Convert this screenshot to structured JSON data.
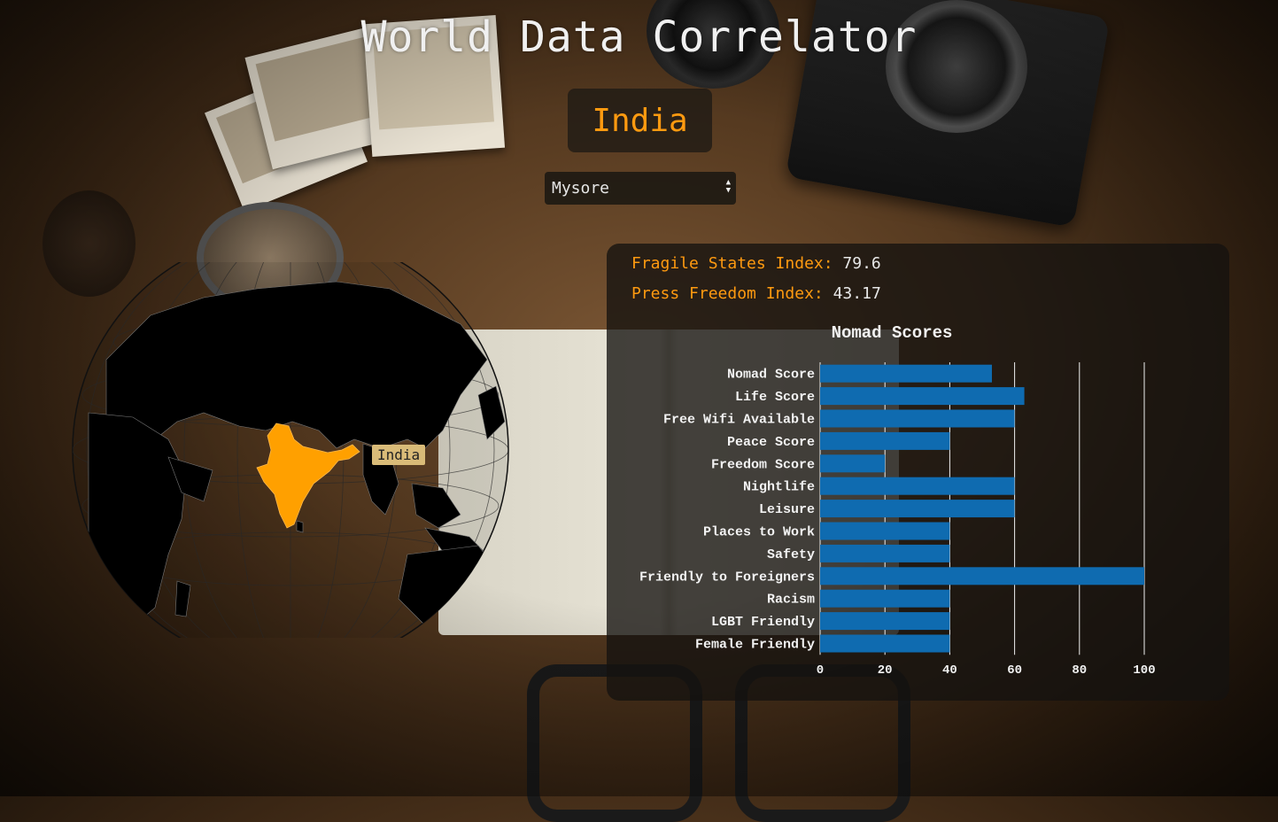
{
  "app": {
    "title": "World Data Correlator"
  },
  "country": {
    "name": "India",
    "tooltip": "India"
  },
  "city_select": {
    "selected": "Mysore"
  },
  "indices": [
    {
      "label": "Fragile States Index:",
      "value": "79.6"
    },
    {
      "label": "Press Freedom Index:",
      "value": "43.17"
    }
  ],
  "colors": {
    "accent": "#ff9a10",
    "bar": "#0f6bb0",
    "highlight_country": "#ffa000"
  },
  "chart_data": {
    "type": "bar",
    "orientation": "horizontal",
    "title": "Nomad Scores",
    "categories": [
      "Nomad Score",
      "Life Score",
      "Free Wifi Available",
      "Peace Score",
      "Freedom Score",
      "Nightlife",
      "Leisure",
      "Places to Work",
      "Safety",
      "Friendly to Foreigners",
      "Racism",
      "LGBT Friendly",
      "Female Friendly"
    ],
    "values": [
      53,
      63,
      60,
      40,
      20,
      60,
      60,
      40,
      40,
      100,
      40,
      40,
      40
    ],
    "xlim": [
      0,
      100
    ],
    "xticks": [
      "0",
      "20",
      "40",
      "60",
      "80",
      "100"
    ],
    "grid": true
  }
}
